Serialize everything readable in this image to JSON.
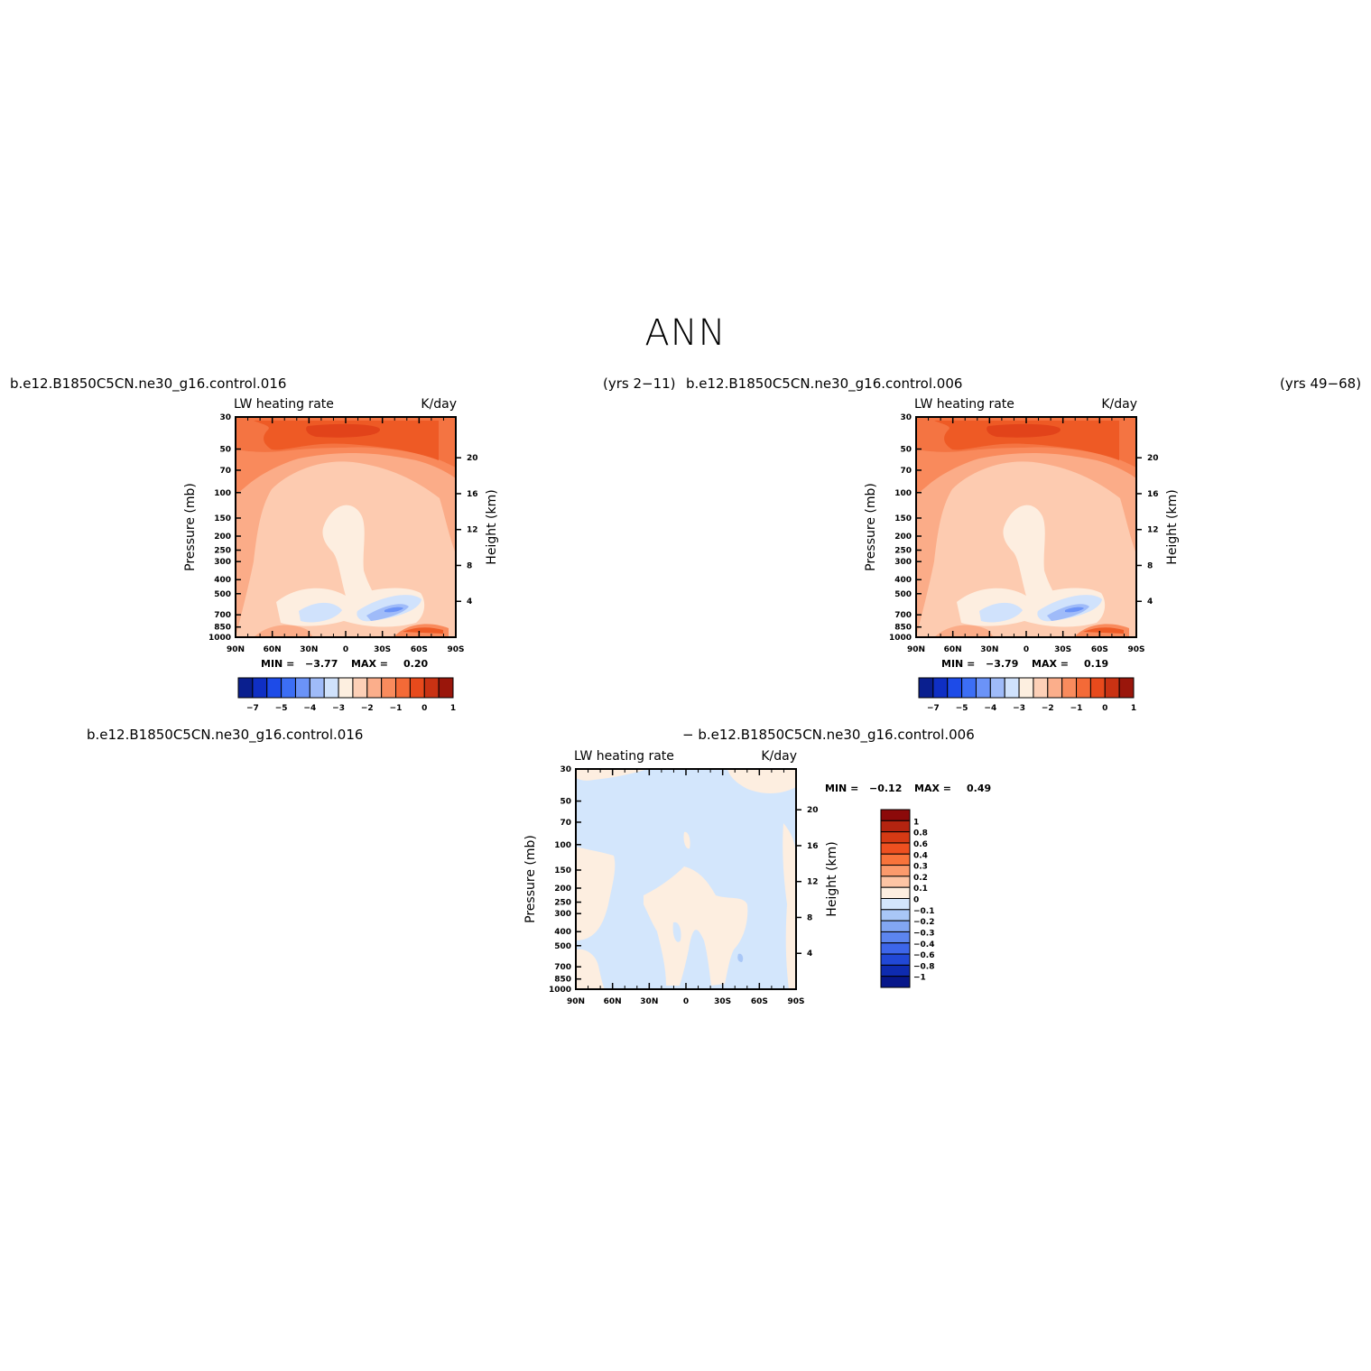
{
  "page_title": "ANN",
  "top_left_title": "b.e12.B1850C5CN.ne30_g16.control.016",
  "top_left_years": "(yrs 2−11)",
  "top_right_title": "b.e12.B1850C5CN.ne30_g16.control.006",
  "top_right_years": "(yrs 49−68)",
  "diff_title_left": "b.e12.B1850C5CN.ne30_g16.control.016",
  "diff_title_right": "− b.e12.B1850C5CN.ne30_g16.control.006",
  "chart_data": [
    {
      "type": "heatmap",
      "id": "case1",
      "title": "LW heating rate",
      "units": "K/day",
      "xlabel": "",
      "ylabel": "Pressure (mb)",
      "y2label": "Height (km)",
      "x_ticks": [
        "90N",
        "60N",
        "30N",
        "0",
        "30S",
        "60S",
        "90S"
      ],
      "y_ticks": [
        "30",
        "50",
        "70",
        "100",
        "150",
        "200",
        "250",
        "300",
        "400",
        "500",
        "700",
        "850",
        "1000"
      ],
      "y2_ticks": [
        "20",
        "16",
        "12",
        "8",
        "4"
      ],
      "min_label": "MIN =",
      "min_value": "−3.77",
      "max_label": "MAX =",
      "max_value": "0.20",
      "colorbar_labels": [
        "−7",
        "−5",
        "−4",
        "−3",
        "−2",
        "−1",
        "0",
        "1"
      ],
      "colorbar_colors": [
        "#0a1f8f",
        "#0f2fc4",
        "#1d4be8",
        "#3c6ef5",
        "#6b93f8",
        "#9fbbf9",
        "#d0e2fc",
        "#fdefe0",
        "#fdd0b7",
        "#fbae8b",
        "#f98b5d",
        "#f46a37",
        "#e84a1c",
        "#c93213",
        "#9a160b"
      ]
    },
    {
      "type": "heatmap",
      "id": "case2",
      "title": "LW heating rate",
      "units": "K/day",
      "xlabel": "",
      "ylabel": "Pressure (mb)",
      "y2label": "Height (km)",
      "x_ticks": [
        "90N",
        "60N",
        "30N",
        "0",
        "30S",
        "60S",
        "90S"
      ],
      "y_ticks": [
        "30",
        "50",
        "70",
        "100",
        "150",
        "200",
        "250",
        "300",
        "400",
        "500",
        "700",
        "850",
        "1000"
      ],
      "y2_ticks": [
        "20",
        "16",
        "12",
        "8",
        "4"
      ],
      "min_label": "MIN =",
      "min_value": "−3.79",
      "max_label": "MAX =",
      "max_value": "0.19",
      "colorbar_labels": [
        "−7",
        "−5",
        "−4",
        "−3",
        "−2",
        "−1",
        "0",
        "1"
      ],
      "colorbar_colors": [
        "#0a1f8f",
        "#0f2fc4",
        "#1d4be8",
        "#3c6ef5",
        "#6b93f8",
        "#9fbbf9",
        "#d0e2fc",
        "#fdefe0",
        "#fdd0b7",
        "#fbae8b",
        "#f98b5d",
        "#f46a37",
        "#e84a1c",
        "#c93213",
        "#9a160b"
      ]
    },
    {
      "type": "heatmap",
      "id": "diff",
      "title": "LW heating rate",
      "units": "K/day",
      "xlabel": "",
      "ylabel": "Pressure (mb)",
      "y2label": "Height (km)",
      "x_ticks": [
        "90N",
        "60N",
        "30N",
        "0",
        "30S",
        "60S",
        "90S"
      ],
      "y_ticks": [
        "30",
        "50",
        "70",
        "100",
        "150",
        "200",
        "250",
        "300",
        "400",
        "500",
        "700",
        "850",
        "1000"
      ],
      "y2_ticks": [
        "20",
        "16",
        "12",
        "8",
        "4"
      ],
      "min_label": "MIN =",
      "min_value": "−0.12",
      "max_label": "MAX =",
      "max_value": "0.49",
      "colorbar_labels": [
        "1",
        "0.8",
        "0.6",
        "0.4",
        "0.3",
        "0.2",
        "0.1",
        "0",
        "−0.1",
        "−0.2",
        "−0.3",
        "−0.4",
        "−0.6",
        "−0.8",
        "−1"
      ],
      "colorbar_colors": [
        "#8c0a0a",
        "#b42410",
        "#d63a14",
        "#ee5020",
        "#f8733b",
        "#fb9a6c",
        "#fdc4a4",
        "#fdeee0",
        "#d3e6fc",
        "#a9c7f7",
        "#82a6f3",
        "#5c85ef",
        "#3d66ea",
        "#2148d6",
        "#0e2bb0",
        "#07178a"
      ]
    }
  ]
}
